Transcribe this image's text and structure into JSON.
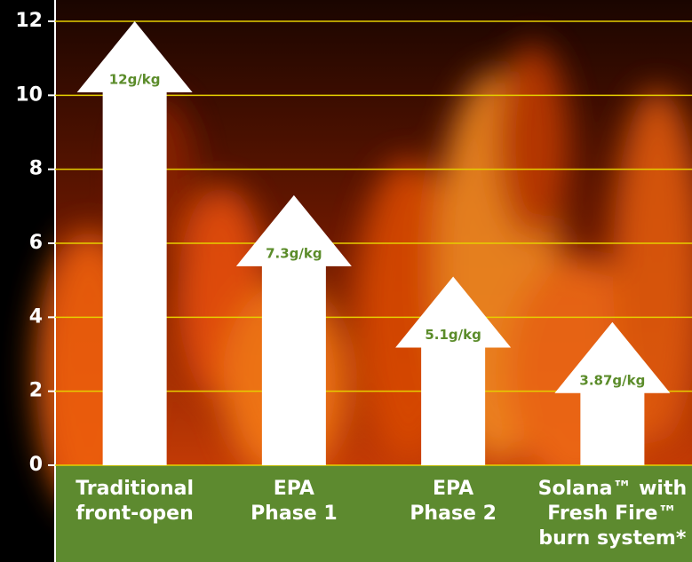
{
  "chart_data": {
    "type": "arrow-bar",
    "categories": [
      [
        "Traditional",
        "front-open"
      ],
      [
        "EPA",
        "Phase 1"
      ],
      [
        "EPA",
        "Phase 2"
      ],
      [
        "Solana™ with",
        "Fresh Fire™",
        "burn system*"
      ]
    ],
    "values": [
      12,
      7.3,
      5.1,
      3.87
    ],
    "value_labels": [
      "12g/kg",
      "7.3g/kg",
      "5.1g/kg",
      "3.87g/kg"
    ],
    "color": "#ffffff",
    "label_color": "#5b8c2a",
    "ylim": [
      0,
      12
    ],
    "yticks": [
      0,
      2,
      4,
      6,
      8,
      10,
      12
    ],
    "grid": true,
    "grid_color": "#e6cf00"
  }
}
